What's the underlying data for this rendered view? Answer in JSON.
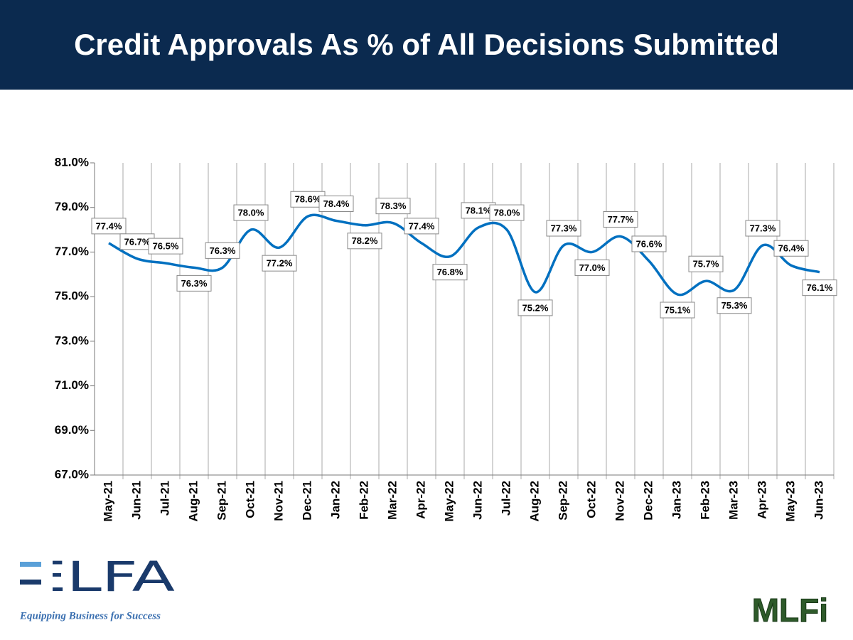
{
  "chart_data": {
    "type": "line",
    "title": "Credit Approvals As % of All Decisions Submitted",
    "categories": [
      "May-21",
      "Jun-21",
      "Jul-21",
      "Aug-21",
      "Sep-21",
      "Oct-21",
      "Nov-21",
      "Dec-21",
      "Jan-22",
      "Feb-22",
      "Mar-22",
      "Apr-22",
      "May-22",
      "Jun-22",
      "Jul-22",
      "Aug-22",
      "Sep-22",
      "Oct-22",
      "Nov-22",
      "Dec-22",
      "Jan-23",
      "Feb-23",
      "Mar-23",
      "Apr-23",
      "May-23",
      "Jun-23"
    ],
    "values": [
      77.4,
      76.7,
      76.5,
      76.3,
      76.3,
      78.0,
      77.2,
      78.6,
      78.4,
      78.2,
      78.3,
      77.4,
      76.8,
      78.1,
      78.0,
      75.2,
      77.3,
      77.0,
      77.7,
      76.6,
      75.1,
      75.7,
      75.3,
      77.3,
      76.4,
      76.1
    ],
    "value_labels": [
      "77.4%",
      "76.7%",
      "76.5%",
      "76.3%",
      "76.3%",
      "78.0%",
      "77.2%",
      "78.6%",
      "78.4%",
      "78.2%",
      "78.3%",
      "77.4%",
      "76.8%",
      "78.1%",
      "78.0%",
      "75.2%",
      "77.3%",
      "77.0%",
      "77.7%",
      "76.6%",
      "75.1%",
      "75.7%",
      "75.3%",
      "77.3%",
      "76.4%",
      "76.1%"
    ],
    "color": "#0070c0",
    "ylim": [
      67,
      81
    ],
    "yticks": [
      {
        "value": 67,
        "label": "67.0%"
      },
      {
        "value": 69,
        "label": "69.0%"
      },
      {
        "value": 71,
        "label": "71.0%"
      },
      {
        "value": 73,
        "label": "73.0%"
      },
      {
        "value": 75,
        "label": "75.0%"
      },
      {
        "value": 77,
        "label": "77.0%"
      },
      {
        "value": 79,
        "label": "79.0%"
      },
      {
        "value": 81,
        "label": "81.0%"
      }
    ],
    "grid": true
  },
  "footer": {
    "left_logo": "ELFA",
    "left_tagline": "Equipping Business for Success",
    "right_logo": "MLFi"
  }
}
